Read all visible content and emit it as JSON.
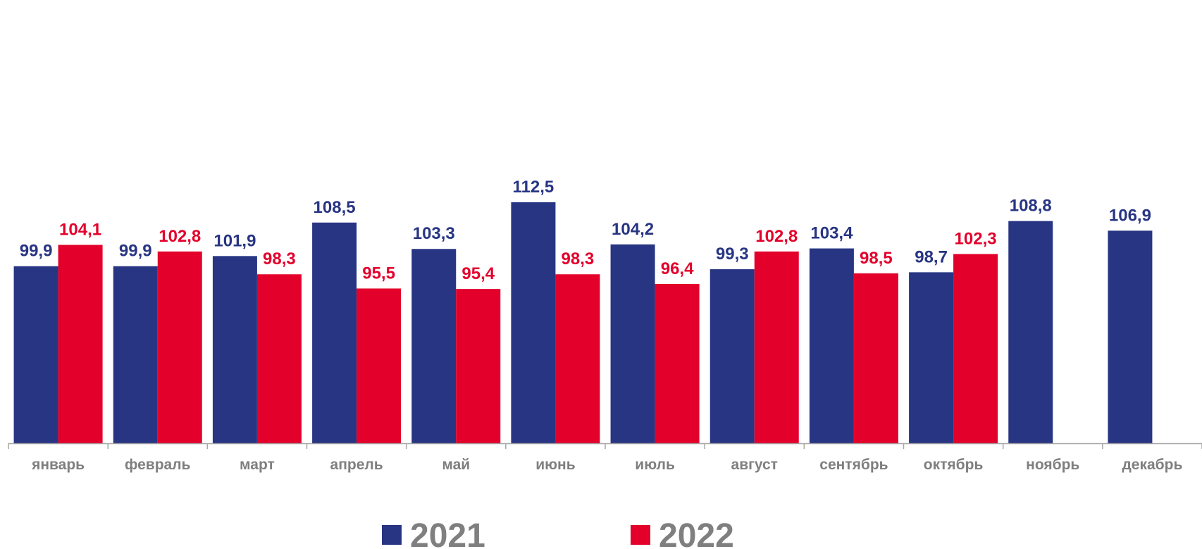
{
  "chart_data": {
    "type": "bar",
    "categories": [
      "январь",
      "февраль",
      "март",
      "апрель",
      "май",
      "июнь",
      "июль",
      "август",
      "сентябрь",
      "октябрь",
      "ноябрь",
      "декабрь"
    ],
    "series": [
      {
        "name": "2021",
        "color": "#283583",
        "values": [
          99.9,
          99.9,
          101.9,
          108.5,
          103.3,
          112.5,
          104.2,
          99.3,
          103.4,
          98.7,
          108.8,
          106.9
        ],
        "labels": [
          "99,9",
          "99,9",
          "101,9",
          "108,5",
          "103,3",
          "112,5",
          "104,2",
          "99,3",
          "103,4",
          "98,7",
          "108,8",
          "106,9"
        ]
      },
      {
        "name": "2022",
        "color": "#e3002b",
        "values": [
          104.1,
          102.8,
          98.3,
          95.5,
          95.4,
          98.3,
          96.4,
          102.8,
          98.5,
          102.3,
          null,
          null
        ],
        "labels": [
          "104,1",
          "102,8",
          "98,3",
          "95,5",
          "95,4",
          "98,3",
          "96,4",
          "102,8",
          "98,5",
          "102,3",
          null,
          null
        ]
      }
    ],
    "ylim": [
      65,
      115
    ],
    "grid": false,
    "legend_position": "bottom"
  }
}
